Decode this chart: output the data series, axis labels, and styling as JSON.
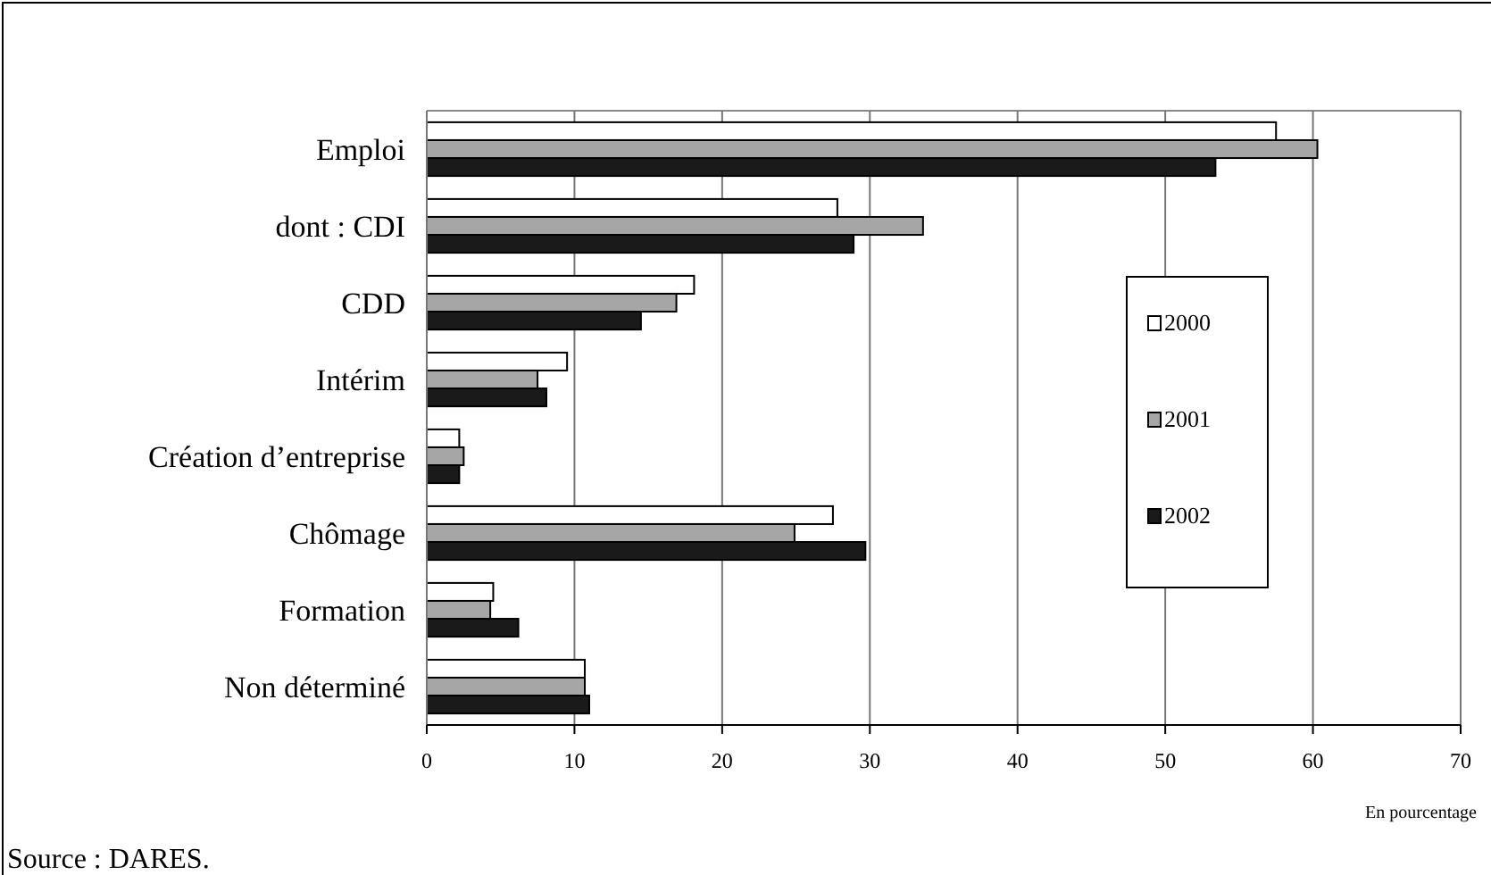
{
  "chart_data": {
    "type": "bar",
    "orientation": "horizontal",
    "categories": [
      "Emploi",
      "dont : CDI",
      "CDD",
      "Intérim",
      "Création d’entreprise",
      "Chômage",
      "Formation",
      "Non déterminé"
    ],
    "series": [
      {
        "name": "2000",
        "color": "#ffffff",
        "values": [
          57.5,
          27.8,
          18.1,
          9.5,
          2.2,
          27.5,
          4.5,
          10.7
        ]
      },
      {
        "name": "2001",
        "color": "#a6a6a6",
        "values": [
          60.3,
          33.6,
          16.9,
          7.5,
          2.5,
          24.9,
          4.3,
          10.7
        ]
      },
      {
        "name": "2002",
        "color": "#1a1a1a",
        "values": [
          53.4,
          28.9,
          14.5,
          8.1,
          2.2,
          29.7,
          6.2,
          11.0
        ]
      }
    ],
    "xlim": [
      0,
      70
    ],
    "xticks": [
      0,
      10,
      20,
      30,
      40,
      50,
      60,
      70
    ],
    "grid": "x",
    "legend": "right",
    "annotations": [
      "En pourcentage",
      "Source : DARES."
    ]
  }
}
